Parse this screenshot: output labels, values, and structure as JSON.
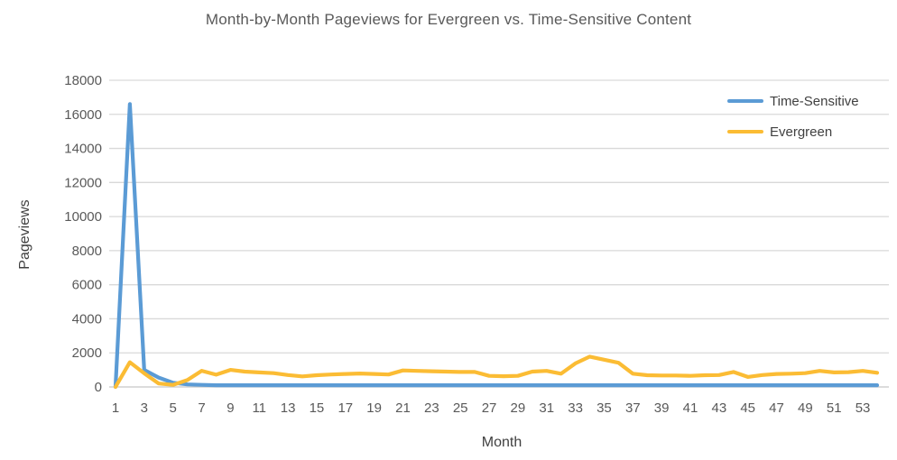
{
  "chart_data": {
    "type": "line",
    "title": "Month-by-Month Pageviews for Evergreen vs. Time-Sensitive Content",
    "xlabel": "Month",
    "ylabel": "Pageviews",
    "x": [
      1,
      2,
      3,
      4,
      5,
      6,
      7,
      8,
      9,
      10,
      11,
      12,
      13,
      14,
      15,
      16,
      17,
      18,
      19,
      20,
      21,
      22,
      23,
      24,
      25,
      26,
      27,
      28,
      29,
      30,
      31,
      32,
      33,
      34,
      35,
      36,
      37,
      38,
      39,
      40,
      41,
      42,
      43,
      44,
      45,
      46,
      47,
      48,
      49,
      50,
      51,
      52,
      53,
      54
    ],
    "series": [
      {
        "name": "Time-Sensitive",
        "color": "#5B9BD5",
        "values": [
          0,
          16600,
          1000,
          550,
          250,
          150,
          120,
          100,
          100,
          100,
          100,
          100,
          100,
          100,
          100,
          100,
          100,
          100,
          100,
          100,
          100,
          100,
          100,
          100,
          100,
          100,
          100,
          100,
          100,
          100,
          100,
          100,
          100,
          100,
          100,
          100,
          100,
          100,
          100,
          100,
          100,
          100,
          100,
          100,
          100,
          100,
          100,
          100,
          100,
          100,
          100,
          100,
          100,
          100
        ]
      },
      {
        "name": "Evergreen",
        "color": "#FBBC34",
        "values": [
          0,
          1450,
          800,
          200,
          120,
          400,
          950,
          720,
          1000,
          900,
          850,
          810,
          700,
          620,
          690,
          730,
          760,
          790,
          760,
          730,
          970,
          940,
          920,
          900,
          880,
          880,
          650,
          630,
          650,
          900,
          940,
          780,
          1380,
          1780,
          1600,
          1420,
          780,
          690,
          670,
          670,
          650,
          690,
          700,
          880,
          590,
          700,
          760,
          780,
          810,
          940,
          850,
          870,
          940,
          830
        ]
      }
    ],
    "ylim": [
      0,
      18000
    ],
    "ytick_step": 2000,
    "yticks": [
      0,
      2000,
      4000,
      6000,
      8000,
      10000,
      12000,
      14000,
      16000,
      18000
    ],
    "xticks": [
      1,
      3,
      5,
      7,
      9,
      11,
      13,
      15,
      17,
      19,
      21,
      23,
      25,
      27,
      29,
      31,
      33,
      35,
      37,
      39,
      41,
      43,
      45,
      47,
      49,
      51,
      53
    ],
    "grid": "horizontal",
    "legend_position": "top-right",
    "colors": {
      "gridline": "#D9D9D9",
      "axis_line": "#C6C6C6",
      "tick_text": "#595959",
      "title_text": "#595959",
      "axis_title_text": "#404040",
      "background": "#FFFFFF"
    }
  }
}
